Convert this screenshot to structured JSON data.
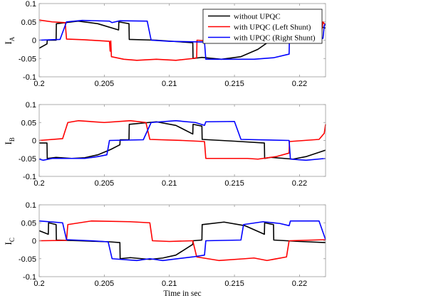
{
  "chart_data": [
    {
      "type": "line",
      "ylabel": "I",
      "ylabel_sub": "A",
      "xlim": [
        0.2,
        0.222
      ],
      "ylim": [
        -0.1,
        0.1
      ],
      "xticks": [
        "0.2",
        "0.205",
        "0.21",
        "0.215",
        "0.22"
      ],
      "yticks": [
        "0.1",
        "0.05",
        "0",
        "-0.05",
        "-0.1"
      ],
      "grid": false,
      "legend": {
        "placement": "top-right",
        "entries": [
          "without UPQC",
          "with UPQC (Left Shunt)",
          "with UPQC (Right Shunt)"
        ]
      },
      "series": [
        {
          "name": "without UPQC",
          "color": "#000000",
          "points": [
            [
              0.2,
              -0.022
            ],
            [
              0.2006,
              -0.01
            ],
            [
              0.20062,
              0
            ],
            [
              0.2013,
              0
            ],
            [
              0.20132,
              0.045
            ],
            [
              0.203,
              0.052
            ],
            [
              0.2045,
              0.045
            ],
            [
              0.2061,
              0.028
            ],
            [
              0.20612,
              0.05
            ],
            [
              0.2069,
              0.045
            ],
            [
              0.20692,
              0.002
            ],
            [
              0.209,
              0
            ],
            [
              0.2118,
              -0.007
            ],
            [
              0.21182,
              -0.05
            ],
            [
              0.2125,
              -0.047
            ],
            [
              0.214,
              -0.052
            ],
            [
              0.2155,
              -0.045
            ],
            [
              0.2168,
              -0.025
            ],
            [
              0.2178,
              0
            ],
            [
              0.22,
              0.025
            ],
            [
              0.2215,
              0.038
            ],
            [
              0.222,
              0.033
            ]
          ]
        },
        {
          "name": "with UPQC (Left Shunt)",
          "color": "#ff0000",
          "points": [
            [
              0.2,
              0.055
            ],
            [
              0.201,
              0.05
            ],
            [
              0.202,
              0.048
            ],
            [
              0.2021,
              0.003
            ],
            [
              0.2035,
              0.001
            ],
            [
              0.2054,
              -0.003
            ],
            [
              0.20545,
              -0.03
            ],
            [
              0.2055,
              -0.002
            ],
            [
              0.20555,
              -0.045
            ],
            [
              0.2065,
              -0.052
            ],
            [
              0.2075,
              -0.055
            ],
            [
              0.209,
              -0.052
            ],
            [
              0.2105,
              -0.055
            ],
            [
              0.2118,
              -0.05
            ],
            [
              0.2121,
              -0.048
            ],
            [
              0.21212,
              0
            ],
            [
              0.2135,
              -0.003
            ],
            [
              0.2216,
              0
            ],
            [
              0.2218,
              0.05
            ],
            [
              0.222,
              0.04
            ]
          ]
        },
        {
          "name": "with UPQC (Right Shunt)",
          "color": "#0000ff",
          "points": [
            [
              0.2,
              0
            ],
            [
              0.2016,
              0.002
            ],
            [
              0.2021,
              0.05
            ],
            [
              0.2033,
              0.054
            ],
            [
              0.2054,
              0.052
            ],
            [
              0.2056,
              0.048
            ],
            [
              0.2062,
              0.053
            ],
            [
              0.2083,
              0.052
            ],
            [
              0.2086,
              0
            ],
            [
              0.21,
              -0.003
            ],
            [
              0.2127,
              -0.005
            ],
            [
              0.2128,
              -0.052
            ],
            [
              0.2145,
              -0.052
            ],
            [
              0.2165,
              -0.052
            ],
            [
              0.218,
              -0.048
            ],
            [
              0.2192,
              -0.038
            ],
            [
              0.21922,
              0
            ],
            [
              0.2218,
              0.005
            ],
            [
              0.2219,
              0.04
            ],
            [
              0.222,
              0.045
            ]
          ]
        }
      ]
    },
    {
      "type": "line",
      "ylabel": "I",
      "ylabel_sub": "B",
      "xlim": [
        0.2,
        0.222
      ],
      "ylim": [
        -0.1,
        0.1
      ],
      "xticks": [
        "0.2",
        "0.205",
        "0.21",
        "0.215",
        "0.22"
      ],
      "yticks": [
        "0.1",
        "0.05",
        "0",
        "-0.05",
        "-0.1"
      ],
      "grid": false,
      "series": [
        {
          "name": "without UPQC",
          "color": "#000000",
          "points": [
            [
              0.2,
              -0.007
            ],
            [
              0.2006,
              -0.007
            ],
            [
              0.20062,
              -0.05
            ],
            [
              0.2013,
              -0.047
            ],
            [
              0.2025,
              -0.05
            ],
            [
              0.2035,
              -0.048
            ],
            [
              0.2045,
              -0.04
            ],
            [
              0.2055,
              -0.025
            ],
            [
              0.2062,
              -0.012
            ],
            [
              0.20622,
              0.002
            ],
            [
              0.2069,
              0.002
            ],
            [
              0.20692,
              0.045
            ],
            [
              0.209,
              0.052
            ],
            [
              0.2105,
              0.042
            ],
            [
              0.2118,
              0.018
            ],
            [
              0.21182,
              0.045
            ],
            [
              0.2125,
              0.04
            ],
            [
              0.21252,
              0.003
            ],
            [
              0.215,
              -0.002
            ],
            [
              0.2173,
              -0.007
            ],
            [
              0.21732,
              -0.05
            ],
            [
              0.2178,
              -0.047
            ],
            [
              0.2195,
              -0.052
            ],
            [
              0.2205,
              -0.045
            ],
            [
              0.222,
              -0.027
            ]
          ]
        },
        {
          "name": "with UPQC (Left Shunt)",
          "color": "#ff0000",
          "points": [
            [
              0.2,
              0
            ],
            [
              0.2018,
              0.005
            ],
            [
              0.2022,
              0.05
            ],
            [
              0.203,
              0.055
            ],
            [
              0.205,
              0.05
            ],
            [
              0.207,
              0.055
            ],
            [
              0.2082,
              0.05
            ],
            [
              0.2085,
              0.003
            ],
            [
              0.211,
              0
            ],
            [
              0.2127,
              -0.003
            ],
            [
              0.2128,
              -0.05
            ],
            [
              0.214,
              -0.05
            ],
            [
              0.216,
              -0.05
            ],
            [
              0.2168,
              -0.052
            ],
            [
              0.2182,
              -0.045
            ],
            [
              0.2192,
              -0.035
            ],
            [
              0.21922,
              -0.003
            ],
            [
              0.2215,
              0.003
            ],
            [
              0.2219,
              0.02
            ],
            [
              0.222,
              0.045
            ]
          ]
        },
        {
          "name": "with UPQC (Right Shunt)",
          "color": "#0000ff",
          "points": [
            [
              0.2,
              -0.052
            ],
            [
              0.2003,
              -0.055
            ],
            [
              0.201,
              -0.05
            ],
            [
              0.2035,
              -0.05
            ],
            [
              0.2045,
              -0.045
            ],
            [
              0.2052,
              -0.04
            ],
            [
              0.2054,
              0
            ],
            [
              0.208,
              0.002
            ],
            [
              0.2086,
              0.05
            ],
            [
              0.2105,
              0.055
            ],
            [
              0.212,
              0.05
            ],
            [
              0.2127,
              0.042
            ],
            [
              0.2128,
              0.052
            ],
            [
              0.215,
              0.053
            ],
            [
              0.2155,
              0.003
            ],
            [
              0.2192,
              0
            ],
            [
              0.2193,
              -0.052
            ],
            [
              0.2205,
              -0.055
            ],
            [
              0.222,
              -0.05
            ]
          ]
        }
      ]
    },
    {
      "type": "line",
      "ylabel": "I",
      "ylabel_sub": "C",
      "xlabel": "Time in sec",
      "xlim": [
        0.2,
        0.222
      ],
      "ylim": [
        -0.1,
        0.1
      ],
      "xticks": [
        "0.2",
        "0.205",
        "0.21",
        "0.215",
        "0.22"
      ],
      "yticks": [
        "0.1",
        "0.05",
        "0",
        "-0.05",
        "-0.1"
      ],
      "grid": false,
      "series": [
        {
          "name": "without UPQC",
          "color": "#000000",
          "points": [
            [
              0.2,
              0.028
            ],
            [
              0.2007,
              0.018
            ],
            [
              0.20072,
              0.05
            ],
            [
              0.2013,
              0.045
            ],
            [
              0.20132,
              0.002
            ],
            [
              0.203,
              0
            ],
            [
              0.2054,
              -0.003
            ],
            [
              0.2062,
              -0.005
            ],
            [
              0.20622,
              -0.05
            ],
            [
              0.207,
              -0.047
            ],
            [
              0.2085,
              -0.052
            ],
            [
              0.2095,
              -0.048
            ],
            [
              0.2105,
              -0.04
            ],
            [
              0.2118,
              -0.01
            ],
            [
              0.21182,
              0
            ],
            [
              0.2125,
              0.002
            ],
            [
              0.21252,
              0.045
            ],
            [
              0.2142,
              0.052
            ],
            [
              0.2158,
              0.042
            ],
            [
              0.2173,
              0.018
            ],
            [
              0.21732,
              0.05
            ],
            [
              0.218,
              0.045
            ],
            [
              0.21802,
              0.002
            ],
            [
              0.22,
              -0.002
            ],
            [
              0.222,
              -0.005
            ]
          ]
        },
        {
          "name": "with UPQC (Left Shunt)",
          "color": "#ff0000",
          "points": [
            [
              0.2,
              0
            ],
            [
              0.2021,
              0.001
            ],
            [
              0.2022,
              0.045
            ],
            [
              0.204,
              0.055
            ],
            [
              0.207,
              0.053
            ],
            [
              0.2085,
              0.05
            ],
            [
              0.2087,
              0
            ],
            [
              0.21,
              -0.002
            ],
            [
              0.2118,
              0
            ],
            [
              0.2121,
              -0.045
            ],
            [
              0.2138,
              -0.055
            ],
            [
              0.2158,
              -0.05
            ],
            [
              0.2165,
              -0.048
            ],
            [
              0.2175,
              -0.055
            ],
            [
              0.219,
              -0.045
            ],
            [
              0.2192,
              0
            ],
            [
              0.222,
              0.003
            ]
          ]
        },
        {
          "name": "with UPQC (Right Shunt)",
          "color": "#0000ff",
          "points": [
            [
              0.2,
              0.055
            ],
            [
              0.2018,
              0.05
            ],
            [
              0.2021,
              0.003
            ],
            [
              0.204,
              0
            ],
            [
              0.2053,
              -0.003
            ],
            [
              0.2056,
              -0.05
            ],
            [
              0.2075,
              -0.055
            ],
            [
              0.2085,
              -0.05
            ],
            [
              0.2095,
              -0.055
            ],
            [
              0.2118,
              -0.045
            ],
            [
              0.2127,
              -0.04
            ],
            [
              0.2128,
              0
            ],
            [
              0.2155,
              0.002
            ],
            [
              0.2157,
              0.045
            ],
            [
              0.2172,
              0.053
            ],
            [
              0.2185,
              0.048
            ],
            [
              0.2192,
              0.042
            ],
            [
              0.2193,
              0.055
            ],
            [
              0.2215,
              0.055
            ],
            [
              0.222,
              0.003
            ]
          ]
        }
      ]
    }
  ]
}
